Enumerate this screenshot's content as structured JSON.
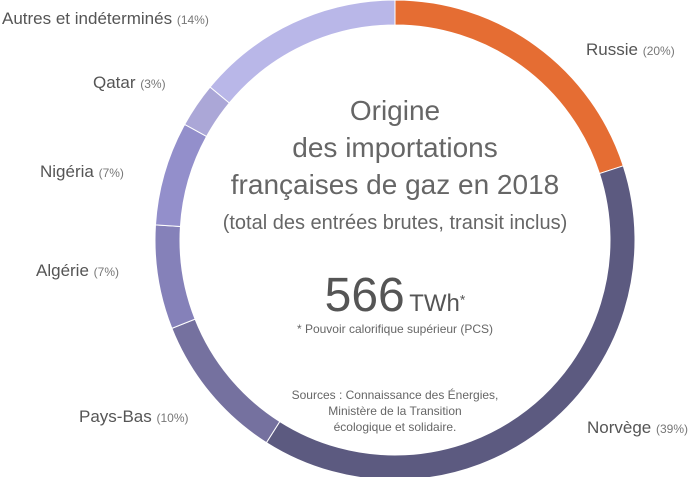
{
  "chart_data": {
    "type": "pie",
    "title": "Origine des importations françaises de gaz en 2018",
    "subtitle": "(total des entrées brutes, transit inclus)",
    "title_lines": [
      "Origine",
      "des importations",
      "françaises de gaz en 2018"
    ],
    "total_value": "566",
    "total_unit": "TWh",
    "total_note_mark": "*",
    "footnote": "* Pouvoir calorifique supérieur (PCS)",
    "sources": [
      "Sources : Connaissance des Énergies,",
      "Ministère de la Transition",
      "écologique et solidaire."
    ],
    "slices": [
      {
        "label": "Russie",
        "value": 20,
        "pct": "(20%)",
        "color": "#e56d33"
      },
      {
        "label": "Norvège",
        "value": 39,
        "pct": "(39%)",
        "color": "#5c5a80"
      },
      {
        "label": "Pays-Bas",
        "value": 10,
        "pct": "(10%)",
        "color": "#75719f"
      },
      {
        "label": "Algérie",
        "value": 7,
        "pct": "(7%)",
        "color": "#8581b9"
      },
      {
        "label": "Nigéria",
        "value": 7,
        "pct": "(7%)",
        "color": "#938fcb"
      },
      {
        "label": "Qatar",
        "value": 3,
        "pct": "(3%)",
        "color": "#aba7d7"
      },
      {
        "label": "Autres et indéterminés",
        "value": 14,
        "pct": "(14%)",
        "color": "#b9b7e8"
      }
    ]
  }
}
